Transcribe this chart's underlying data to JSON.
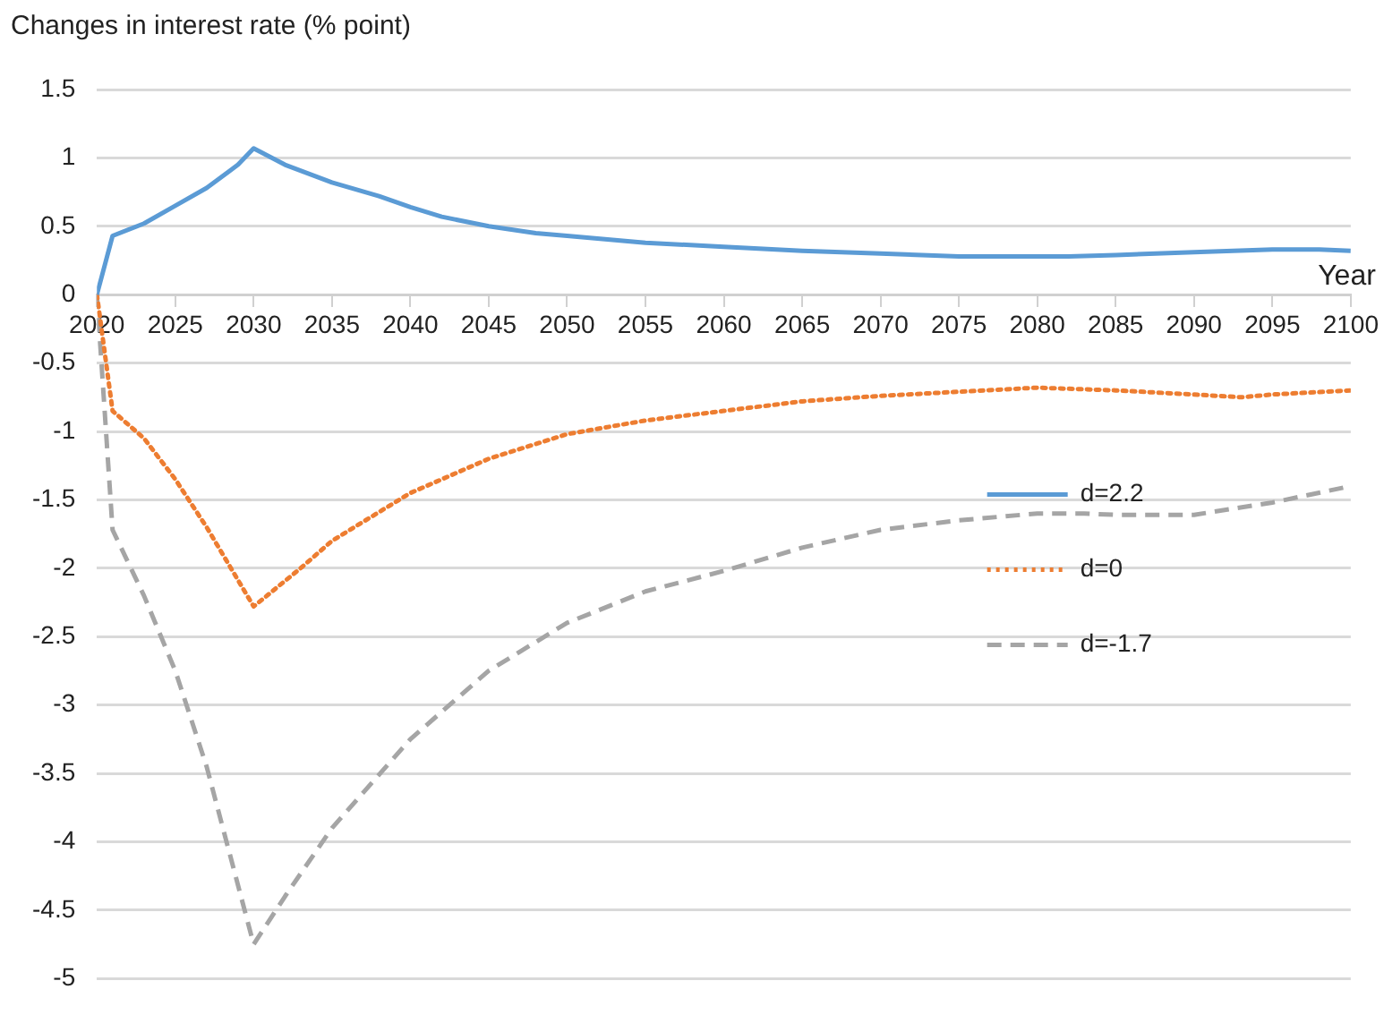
{
  "chart_data": {
    "type": "line",
    "ylabel": "Changes in interest rate (% point)",
    "xlabel": "Year",
    "xlim": [
      2020,
      2100
    ],
    "xticks": [
      2020,
      2025,
      2030,
      2035,
      2040,
      2045,
      2050,
      2055,
      2060,
      2065,
      2070,
      2075,
      2080,
      2085,
      2090,
      2095,
      2100
    ],
    "ylim": [
      -5,
      1.5
    ],
    "yticks": [
      -5,
      -4.5,
      -4,
      -3.5,
      -3,
      -2.5,
      -2,
      -1.5,
      -1,
      -0.5,
      0,
      0.5,
      1,
      1.5
    ],
    "grid": "y",
    "legend": "right",
    "marker": "none",
    "series": [
      {
        "name": "d=2.2",
        "color": "#5b9bd5",
        "line_style": "solid",
        "x": [
          2020,
          2021,
          2023,
          2025,
          2027,
          2029,
          2030,
          2032,
          2035,
          2038,
          2040,
          2042,
          2045,
          2048,
          2050,
          2055,
          2060,
          2065,
          2070,
          2075,
          2080,
          2082,
          2085,
          2090,
          2095,
          2098,
          2100
        ],
        "values": [
          0,
          0.43,
          0.52,
          0.65,
          0.78,
          0.95,
          1.07,
          0.95,
          0.82,
          0.72,
          0.64,
          0.57,
          0.5,
          0.45,
          0.43,
          0.38,
          0.35,
          0.32,
          0.3,
          0.28,
          0.28,
          0.28,
          0.29,
          0.31,
          0.33,
          0.33,
          0.32
        ]
      },
      {
        "name": "d=0",
        "color": "#ed7d31",
        "line_style": "dotted",
        "x": [
          2020,
          2021,
          2023,
          2025,
          2027,
          2030,
          2033,
          2035,
          2040,
          2045,
          2050,
          2055,
          2060,
          2065,
          2070,
          2075,
          2080,
          2085,
          2090,
          2093,
          2095,
          2100
        ],
        "values": [
          0,
          -0.85,
          -1.05,
          -1.35,
          -1.7,
          -2.28,
          -2.0,
          -1.8,
          -1.45,
          -1.2,
          -1.02,
          -0.92,
          -0.85,
          -0.78,
          -0.74,
          -0.71,
          -0.68,
          -0.7,
          -0.73,
          -0.75,
          -0.73,
          -0.7
        ]
      },
      {
        "name": "d=-1.7",
        "color": "#a5a5a5",
        "line_style": "dashed",
        "x": [
          2020,
          2021,
          2023,
          2025,
          2027,
          2030,
          2032,
          2035,
          2040,
          2045,
          2050,
          2055,
          2060,
          2065,
          2070,
          2075,
          2080,
          2083,
          2085,
          2090,
          2095,
          2100
        ],
        "values": [
          0,
          -1.72,
          -2.2,
          -2.75,
          -3.45,
          -4.75,
          -4.4,
          -3.9,
          -3.25,
          -2.75,
          -2.4,
          -2.17,
          -2.02,
          -1.85,
          -1.72,
          -1.65,
          -1.6,
          -1.6,
          -1.61,
          -1.61,
          -1.52,
          -1.4
        ]
      }
    ]
  }
}
